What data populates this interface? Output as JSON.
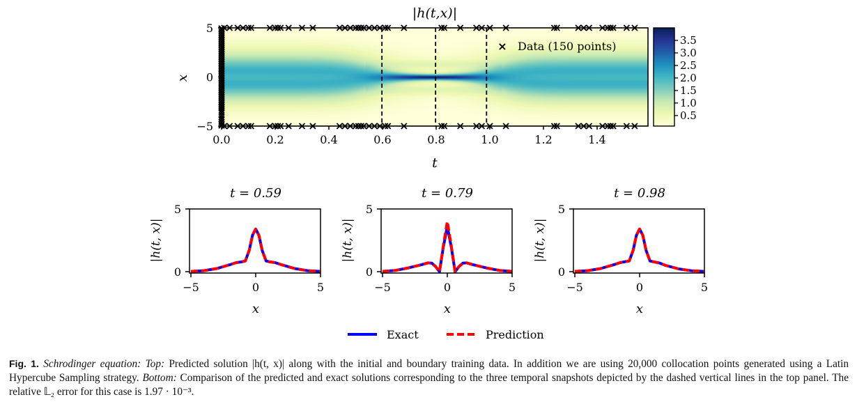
{
  "chart_data": [
    {
      "type": "heatmap",
      "title": "|h(t,x)|",
      "xlabel": "t",
      "ylabel": "x",
      "xlim": [
        0,
        1.5708
      ],
      "ylim": [
        -5,
        5
      ],
      "xticks": [
        "0.0",
        "0.2",
        "0.4",
        "0.6",
        "0.8",
        "1.0",
        "1.2",
        "1.4"
      ],
      "yticks": [
        "-5",
        "0",
        "5"
      ],
      "colormap": "YlGnBu",
      "colorbar": {
        "range": [
          0.08,
          4.0
        ],
        "ticks": [
          "0.5",
          "1.0",
          "1.5",
          "2.0",
          "2.5",
          "3.0",
          "3.5"
        ]
      },
      "snapshot_lines": [
        0.59,
        0.79,
        0.98
      ],
      "legend": {
        "label": "Data (150 points)",
        "marker": "x",
        "placement": "top-right"
      },
      "boundary_data_t": [
        0.01,
        0.03,
        0.06,
        0.08,
        0.1,
        0.11,
        0.18,
        0.2,
        0.21,
        0.22,
        0.25,
        0.3,
        0.34,
        0.44,
        0.46,
        0.48,
        0.5,
        0.51,
        0.52,
        0.53,
        0.55,
        0.57,
        0.59,
        0.61,
        0.62,
        0.68,
        0.82,
        0.83,
        0.89,
        0.95,
        0.97,
        1.0,
        1.06,
        1.24,
        1.25,
        1.33,
        1.35,
        1.37,
        1.42,
        1.44,
        1.45,
        1.46,
        1.51,
        1.54
      ],
      "initial_data_x": [
        -4.8,
        -4.6,
        -4.3,
        -4.1,
        -3.9,
        -3.6,
        -3.4,
        -3.2,
        -3.0,
        -2.8,
        -2.6,
        -2.4,
        -2.2,
        -2.0,
        -1.8,
        -1.6,
        -1.4,
        -1.2,
        -1.0,
        -0.8,
        -0.6,
        -0.4,
        -0.2,
        0.0,
        0.2,
        0.4,
        0.6,
        0.8,
        1.0,
        1.2,
        1.4,
        1.6,
        1.8,
        2.0,
        2.2,
        2.4,
        2.6,
        2.8,
        3.0,
        3.2,
        3.4,
        3.6,
        3.8,
        4.0,
        4.2,
        4.4,
        4.6,
        4.8,
        -4.95,
        4.95
      ]
    },
    {
      "type": "line",
      "title": "t = 0.59",
      "xlabel": "x",
      "ylabel": "|h(t, x)|",
      "xlim": [
        -5,
        5
      ],
      "ylim": [
        0,
        5
      ],
      "xticks": [
        "−5",
        "0",
        "5"
      ],
      "yticks": [
        "0",
        "5"
      ],
      "x": [
        -5,
        -4,
        -3,
        -2,
        -1.5,
        -1.1,
        -0.8,
        -0.5,
        -0.25,
        0,
        0.25,
        0.5,
        0.8,
        1.1,
        1.5,
        2,
        3,
        4,
        5
      ],
      "series": [
        {
          "name": "Exact",
          "values": [
            0.02,
            0.08,
            0.25,
            0.55,
            0.72,
            0.78,
            0.85,
            1.7,
            2.9,
            3.4,
            2.9,
            1.7,
            0.85,
            0.78,
            0.72,
            0.55,
            0.25,
            0.08,
            0.02
          ]
        },
        {
          "name": "Prediction",
          "values": [
            0.02,
            0.08,
            0.25,
            0.55,
            0.72,
            0.78,
            0.85,
            1.7,
            2.9,
            3.4,
            2.9,
            1.7,
            0.85,
            0.78,
            0.72,
            0.55,
            0.25,
            0.08,
            0.02
          ]
        }
      ]
    },
    {
      "type": "line",
      "title": "t = 0.79",
      "xlabel": "x",
      "ylabel": "|h(t, x)|",
      "xlim": [
        -5,
        5
      ],
      "ylim": [
        0,
        5
      ],
      "xticks": [
        "−5",
        "0",
        "5"
      ],
      "yticks": [
        "0",
        "5"
      ],
      "x": [
        -5,
        -4,
        -3,
        -2,
        -1.5,
        -1.2,
        -0.9,
        -0.6,
        -0.3,
        0,
        0.3,
        0.6,
        0.9,
        1.2,
        1.5,
        2,
        3,
        4,
        5
      ],
      "series": [
        {
          "name": "Exact",
          "values": [
            0.02,
            0.1,
            0.3,
            0.55,
            0.7,
            0.68,
            0.4,
            0.0,
            2.0,
            3.6,
            2.0,
            0.0,
            0.4,
            0.68,
            0.7,
            0.55,
            0.3,
            0.1,
            0.02
          ]
        },
        {
          "name": "Prediction",
          "values": [
            0.02,
            0.1,
            0.3,
            0.55,
            0.7,
            0.68,
            0.4,
            0.0,
            2.1,
            4.0,
            2.1,
            0.0,
            0.4,
            0.68,
            0.7,
            0.55,
            0.3,
            0.1,
            0.02
          ]
        }
      ]
    },
    {
      "type": "line",
      "title": "t = 0.98",
      "xlabel": "x",
      "ylabel": "|h(t, x)|",
      "xlim": [
        -5,
        5
      ],
      "ylim": [
        0,
        5
      ],
      "xticks": [
        "−5",
        "0",
        "5"
      ],
      "yticks": [
        "0",
        "5"
      ],
      "x": [
        -5,
        -4,
        -3,
        -2,
        -1.5,
        -1.1,
        -0.8,
        -0.5,
        -0.25,
        0,
        0.25,
        0.5,
        0.8,
        1.1,
        1.5,
        2,
        3,
        4,
        5
      ],
      "series": [
        {
          "name": "Exact",
          "values": [
            0.02,
            0.08,
            0.25,
            0.55,
            0.72,
            0.8,
            0.85,
            1.7,
            2.9,
            3.4,
            2.9,
            1.7,
            0.85,
            0.78,
            0.7,
            0.5,
            0.22,
            0.07,
            0.02
          ]
        },
        {
          "name": "Prediction",
          "values": [
            0.02,
            0.08,
            0.25,
            0.55,
            0.72,
            0.8,
            0.85,
            1.7,
            2.9,
            3.4,
            2.9,
            1.7,
            0.85,
            0.78,
            0.7,
            0.5,
            0.22,
            0.07,
            0.02
          ]
        }
      ]
    }
  ],
  "legend": {
    "exact": "Exact",
    "prediction": "Prediction"
  },
  "colors": {
    "exact": "#0000ff",
    "prediction": "#ff0000"
  },
  "caption": {
    "label": "Fig. 1.",
    "title": "Schrodinger equation:",
    "top_label": "Top:",
    "text1": "Predicted solution |h(t, x)| along with the initial and boundary training data. In addition we are using 20,000 collocation points generated using a Latin Hypercube Sampling strategy.",
    "bottom_label": "Bottom:",
    "text2": "Comparison of the predicted and exact solutions corresponding to the three temporal snapshots depicted by the dashed vertical lines in the top panel. The relative 𝕃₂ error for this case is 1.97 · 10⁻³."
  }
}
